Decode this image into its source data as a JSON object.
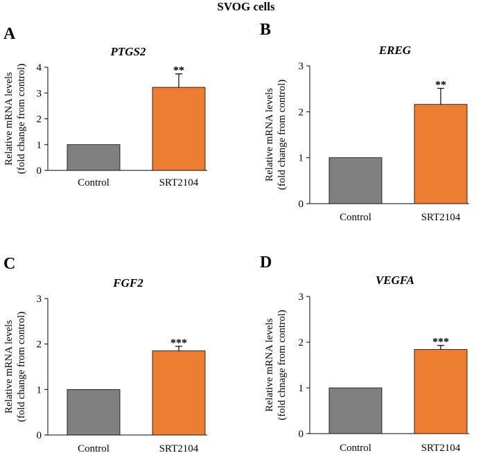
{
  "figure_title": "SVOG cells",
  "colors": {
    "control": "#808080",
    "treated": "#ED7D31",
    "axis": "#000000",
    "error": "#000000"
  },
  "chart_data": [
    {
      "type": "bar",
      "panel": "A",
      "title": "PTGS2",
      "categories": [
        "Control",
        "SRT2104"
      ],
      "values": [
        1.0,
        3.22
      ],
      "errors": [
        0.0,
        0.52
      ],
      "significance": [
        "",
        "**"
      ],
      "ylim": [
        0,
        4
      ],
      "yticks": [
        "0",
        "1",
        "2",
        "3",
        "4"
      ],
      "ylabel_lines": [
        "Relative mRNA levels",
        "(fold change from control)"
      ]
    },
    {
      "type": "bar",
      "panel": "B",
      "title": "EREG",
      "categories": [
        "Control",
        "SRT2104"
      ],
      "values": [
        1.0,
        2.16
      ],
      "errors": [
        0.0,
        0.35
      ],
      "significance": [
        "",
        "**"
      ],
      "ylim": [
        0,
        3
      ],
      "yticks": [
        "0",
        "1",
        "2",
        "3"
      ],
      "ylabel_lines": [
        "Relative mRNA levels",
        "(fold change from control)"
      ]
    },
    {
      "type": "bar",
      "panel": "C",
      "title": "FGF2",
      "categories": [
        "Control",
        "SRT2104"
      ],
      "values": [
        1.0,
        1.85
      ],
      "errors": [
        0.0,
        0.1
      ],
      "significance": [
        "",
        "***"
      ],
      "ylim": [
        0,
        3
      ],
      "yticks": [
        "0",
        "1",
        "2",
        "3"
      ],
      "ylabel_lines": [
        "Relative mRNA levels",
        "(fold change from control)"
      ]
    },
    {
      "type": "bar",
      "panel": "D",
      "title": "VEGFA",
      "categories": [
        "Control",
        "SRT2104"
      ],
      "values": [
        1.0,
        1.84
      ],
      "errors": [
        0.0,
        0.09
      ],
      "significance": [
        "",
        "***"
      ],
      "ylim": [
        0,
        3
      ],
      "yticks": [
        "0",
        "1",
        "2",
        "3"
      ],
      "ylabel_lines": [
        "Relative mRNA levels",
        "(fold chnage from control)"
      ]
    }
  ]
}
